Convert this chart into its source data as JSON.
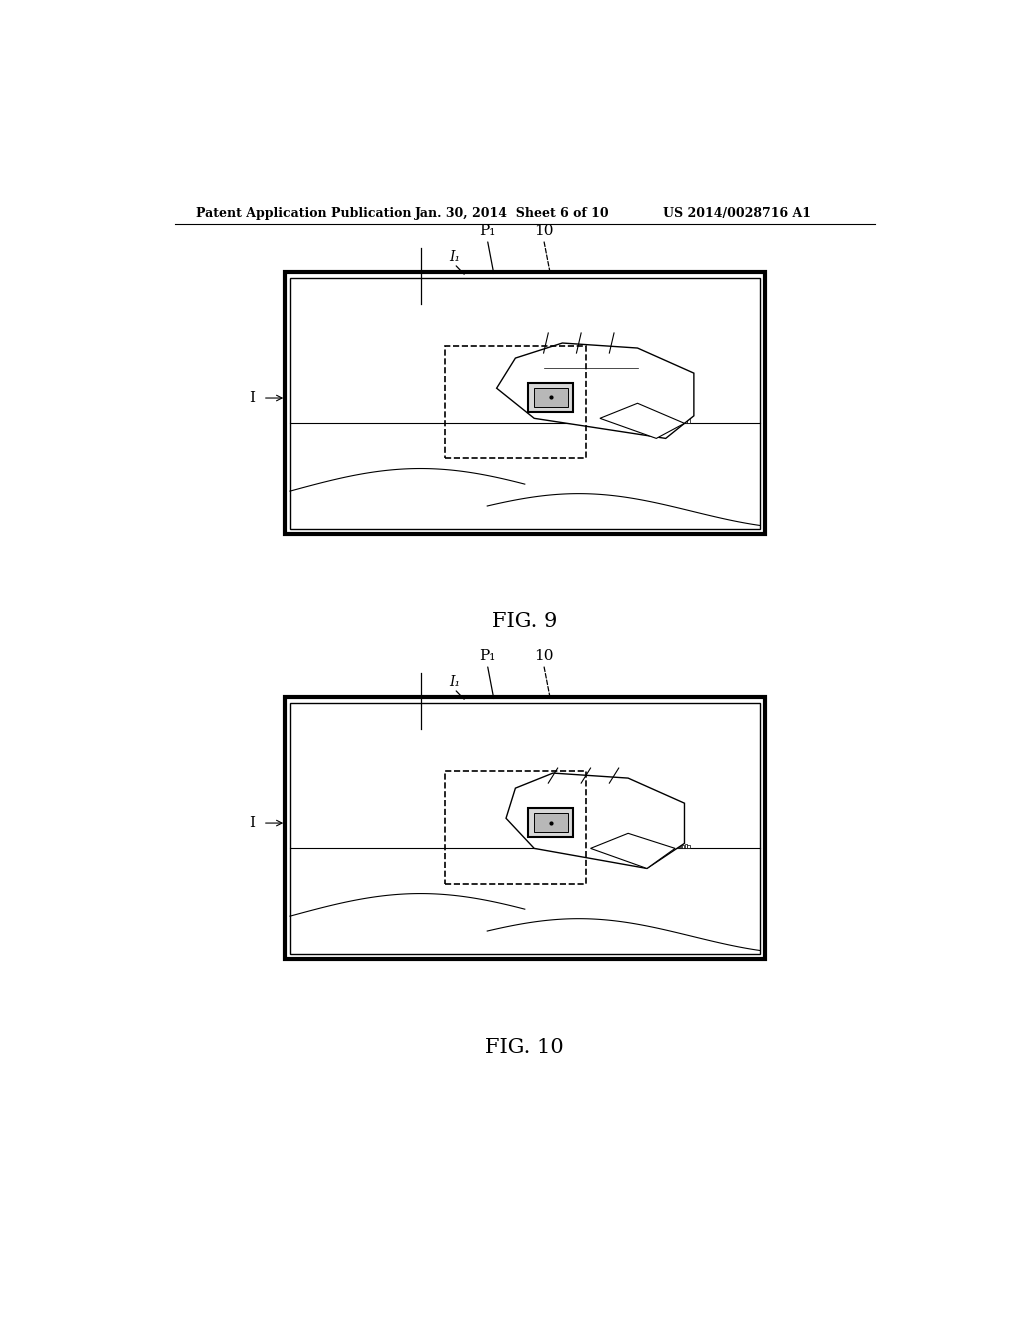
{
  "background_color": "#ffffff",
  "header_left": "Patent Application Publication",
  "header_mid": "Jan. 30, 2014  Sheet 6 of 10",
  "header_right": "US 2014/0028716 A1",
  "fig9_label": "FIG. 9",
  "fig10_label": "FIG. 10",
  "label_I": "I",
  "label_P1": "P₁",
  "label_10": "10",
  "label_I1": "I₁"
}
